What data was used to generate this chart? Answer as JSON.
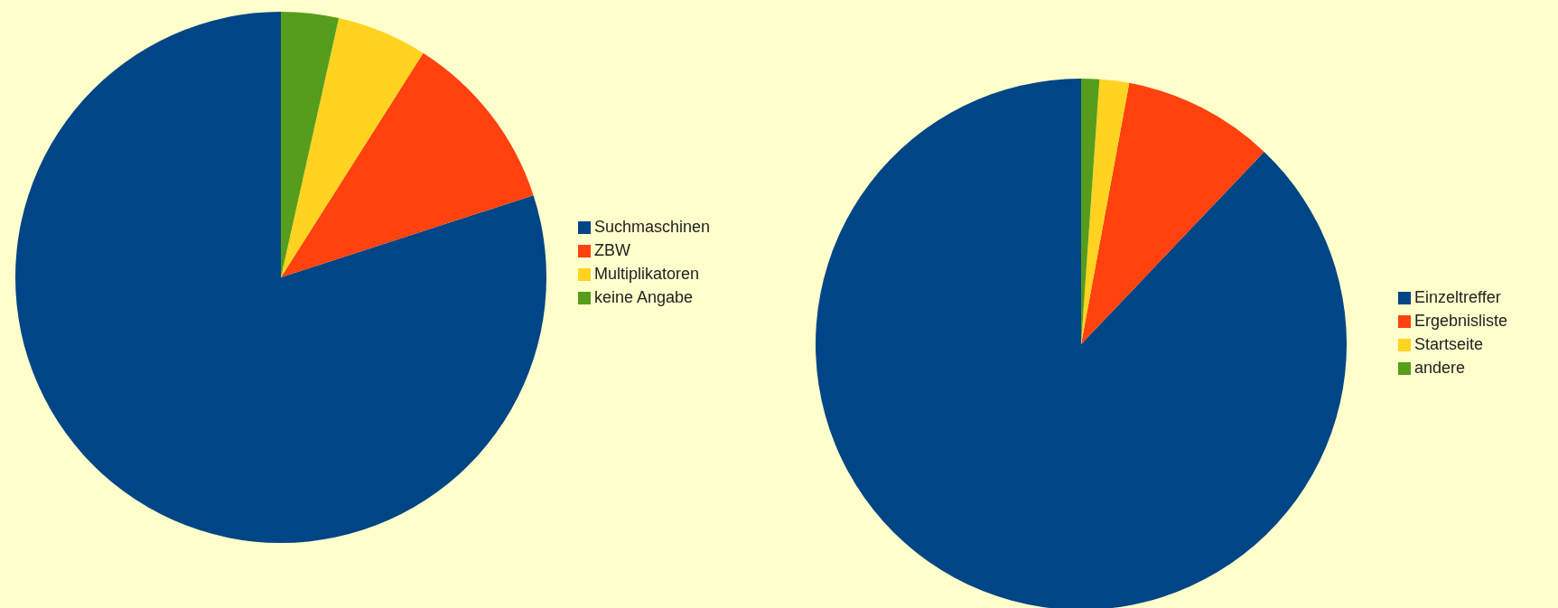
{
  "chart_data": [
    {
      "type": "pie",
      "categories": [
        "Suchmaschinen",
        "ZBW",
        "Multiplikatoren",
        "keine Angabe"
      ],
      "values": [
        80,
        11,
        5.5,
        3.5
      ],
      "colors": [
        "#004586",
        "#ff420e",
        "#ffd320",
        "#579d1c"
      ],
      "legend": "right"
    },
    {
      "type": "pie",
      "categories": [
        "Einzeltreffer",
        "Ergebnisliste",
        "Startseite",
        "andere"
      ],
      "values": [
        87.9,
        9.2,
        1.8,
        1.1
      ],
      "colors": [
        "#004586",
        "#ff420e",
        "#ffd320",
        "#579d1c"
      ],
      "legend": "right"
    }
  ]
}
